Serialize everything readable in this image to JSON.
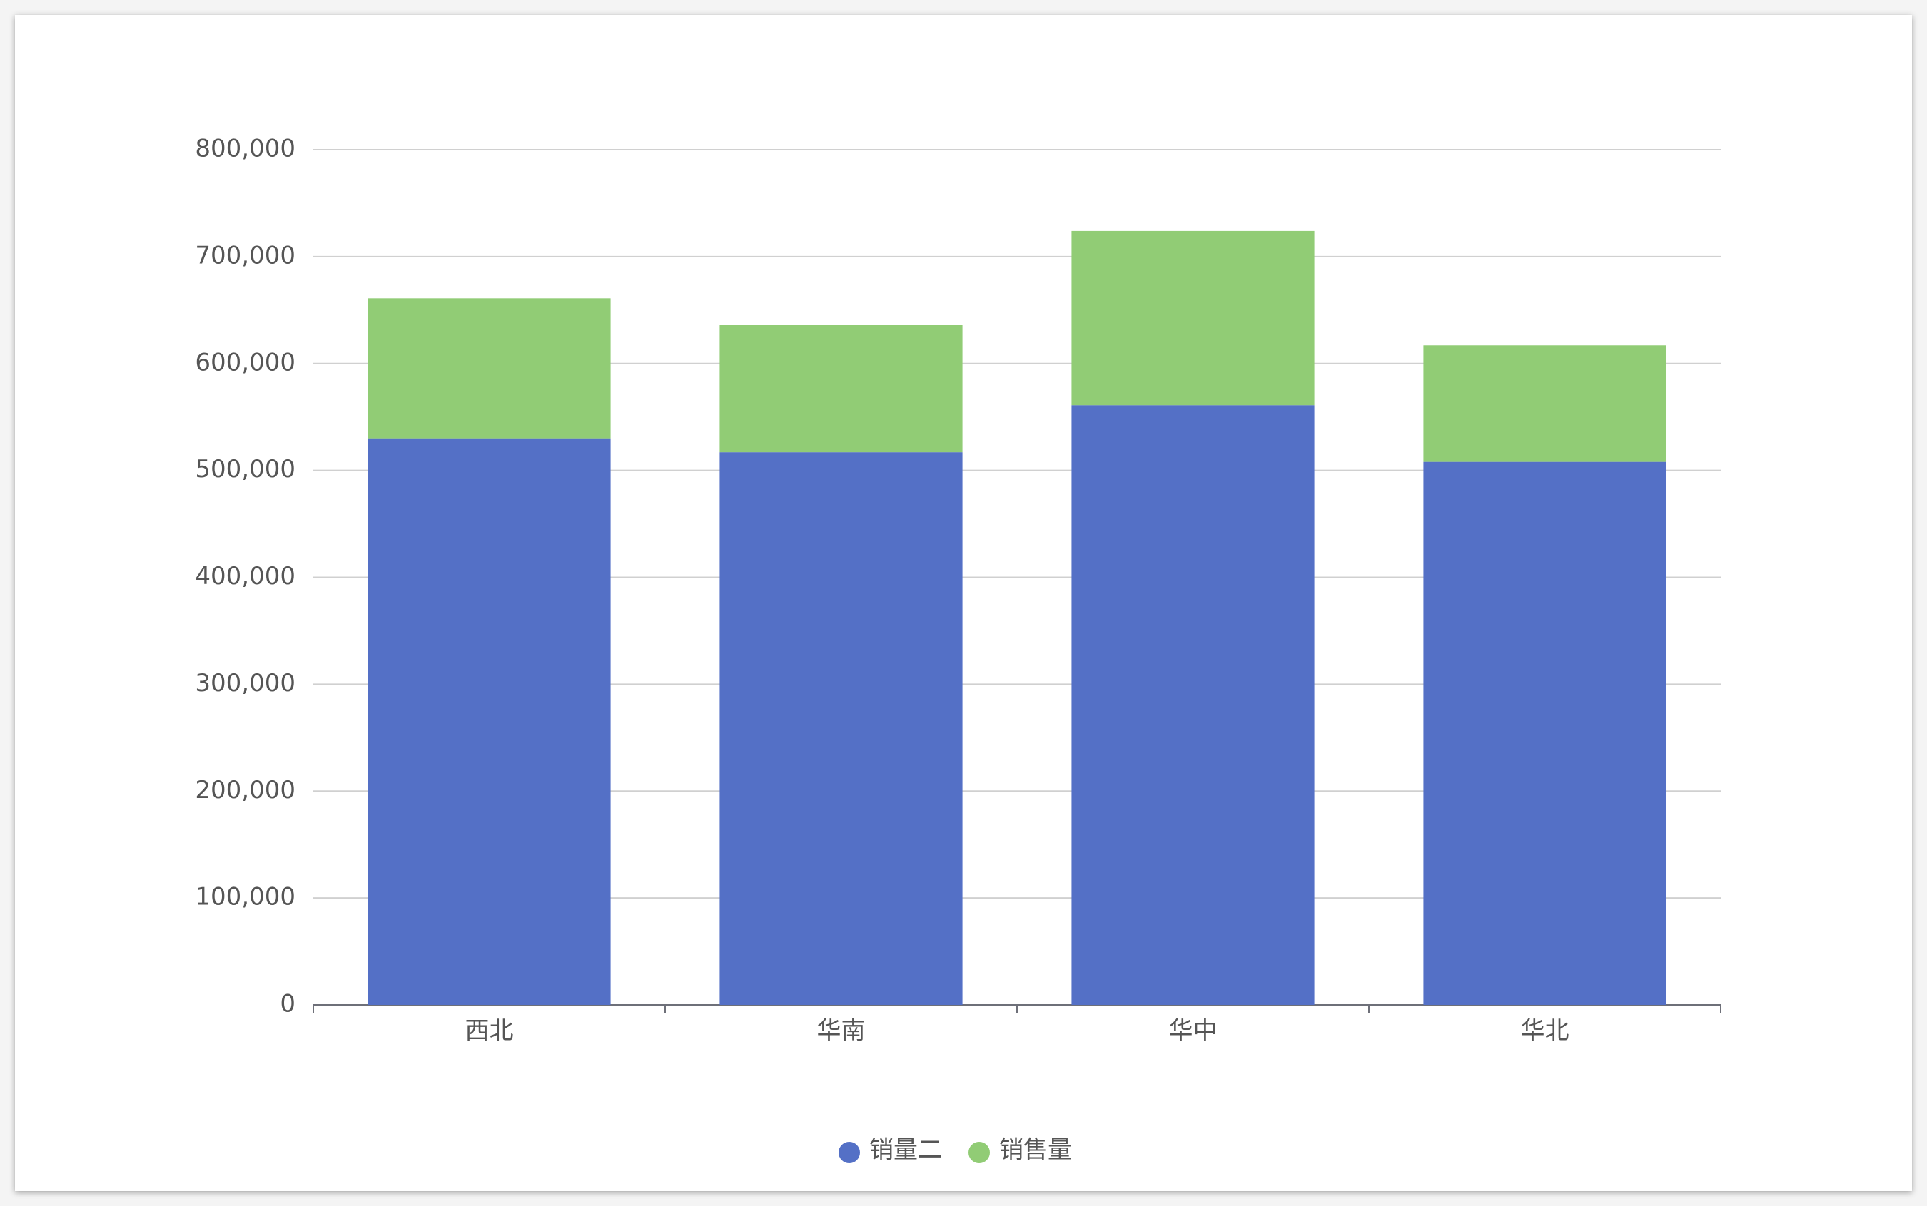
{
  "chart_data": {
    "type": "stacked_bar",
    "categories": [
      "西北",
      "华南",
      "华中",
      "华北"
    ],
    "series": [
      {
        "name": "销量二",
        "color": "#5470c6",
        "values": [
          530000,
          517000,
          561000,
          508000
        ]
      },
      {
        "name": "销售量",
        "color": "#91cc75",
        "values": [
          131000,
          119000,
          163000,
          109000
        ]
      }
    ],
    "ylim": [
      0,
      800000
    ],
    "yticks": [
      0,
      {
        "value": 100000,
        "label": "100,000"
      },
      {
        "value": 200000,
        "label": "200,000"
      },
      {
        "value": 300000,
        "label": "300,000"
      },
      {
        "value": 400000,
        "label": "400,000"
      },
      {
        "value": 500000,
        "label": "500,000"
      },
      {
        "value": 600000,
        "label": "600,000"
      },
      {
        "value": 700000,
        "label": "700,000"
      },
      {
        "value": 800000,
        "label": "800,000"
      }
    ],
    "grid": true
  }
}
